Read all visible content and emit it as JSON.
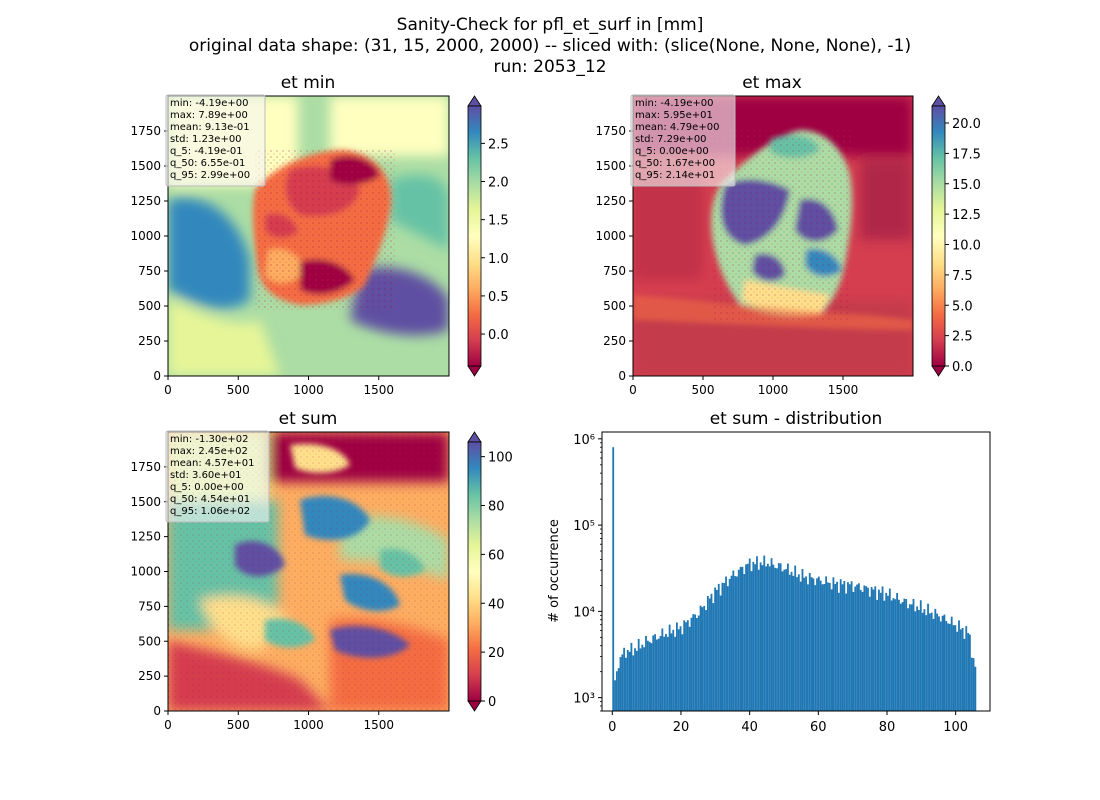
{
  "figure": {
    "title_lines": [
      "Sanity-Check for pfl_et_surf in [mm]",
      "original data shape: (31, 15, 2000, 2000) -- sliced with: (slice(None, None, None), -1)",
      "run: 2053_12"
    ]
  },
  "colors": {
    "hist_bar": "#1f77b4",
    "spectral_stops": [
      "#9e0142",
      "#d53e4f",
      "#f46d43",
      "#fdae61",
      "#fee08b",
      "#ffffbf",
      "#e6f598",
      "#abdda4",
      "#66c2a5",
      "#3288bd",
      "#5e4fa2"
    ]
  },
  "chart_data": [
    {
      "type": "heatmap",
      "title": "et min",
      "colormap": "Spectral",
      "xticks": [
        0,
        500,
        1000,
        1500
      ],
      "yticks": [
        0,
        250,
        500,
        750,
        1000,
        1250,
        1500,
        1750
      ],
      "xlim": [
        0,
        2000
      ],
      "ylim": [
        0,
        2000
      ],
      "colorbar": {
        "range": [
          -0.419,
          2.99
        ],
        "ticks": [
          0.0,
          0.5,
          1.0,
          1.5,
          2.0,
          2.5
        ],
        "tick_labels": [
          "0.0",
          "0.5",
          "1.0",
          "1.5",
          "2.0",
          "2.5"
        ]
      },
      "stats": [
        "min: -4.19e+00",
        "max: 7.89e+00",
        "mean: 9.13e-01",
        "std: 1.23e+00",
        "q_5: -4.19e-01",
        "q_50: 6.55e-01",
        "q_95: 2.99e+00"
      ]
    },
    {
      "type": "heatmap",
      "title": "et max",
      "colormap": "Spectral",
      "xticks": [
        0,
        500,
        1000,
        1500
      ],
      "yticks": [
        0,
        250,
        500,
        750,
        1000,
        1250,
        1500,
        1750
      ],
      "xlim": [
        0,
        2000
      ],
      "ylim": [
        0,
        2000
      ],
      "colorbar": {
        "range": [
          0,
          21.4
        ],
        "ticks": [
          0.0,
          2.5,
          5.0,
          7.5,
          10.0,
          12.5,
          15.0,
          17.5,
          20.0
        ],
        "tick_labels": [
          "0.0",
          "2.5",
          "5.0",
          "7.5",
          "10.0",
          "12.5",
          "15.0",
          "17.5",
          "20.0"
        ]
      },
      "stats": [
        "min: -4.19e+00",
        "max: 5.95e+01",
        "mean: 4.79e+00",
        "std: 7.29e+00",
        "q_5: 0.00e+00",
        "q_50: 1.67e+00",
        "q_95: 2.14e+01"
      ]
    },
    {
      "type": "heatmap",
      "title": "et sum",
      "colormap": "Spectral",
      "xticks": [
        0,
        500,
        1000,
        1500
      ],
      "yticks": [
        0,
        250,
        500,
        750,
        1000,
        1250,
        1500,
        1750
      ],
      "xlim": [
        0,
        2000
      ],
      "ylim": [
        0,
        2000
      ],
      "colorbar": {
        "range": [
          0,
          106
        ],
        "ticks": [
          0,
          20,
          40,
          60,
          80,
          100
        ],
        "tick_labels": [
          "0",
          "20",
          "40",
          "60",
          "80",
          "100"
        ]
      },
      "stats": [
        "min: -1.30e+02",
        "max: 2.45e+02",
        "mean: 4.57e+01",
        "std: 3.60e+01",
        "q_5: 0.00e+00",
        "q_50: 4.54e+01",
        "q_95: 1.06e+02"
      ]
    },
    {
      "type": "bar",
      "subtype": "histogram",
      "title": "et sum - distribution",
      "xlabel": "",
      "ylabel": "# of occurrence",
      "yscale": "log",
      "xlim": [
        -3,
        110
      ],
      "ylim": [
        700,
        1200000
      ],
      "xticks": [
        0,
        20,
        40,
        60,
        80,
        100
      ],
      "yticks": [
        1000,
        10000,
        100000,
        1000000
      ],
      "ytick_labels": [
        "10³",
        "10⁴",
        "10⁵",
        "10⁶"
      ],
      "bin_width": 0.53,
      "bin_start": 0,
      "spike": {
        "x": 0,
        "count": 800000
      },
      "profile_x": [
        0,
        1,
        2,
        4,
        6,
        10,
        15,
        20,
        25,
        30,
        35,
        40,
        45,
        50,
        55,
        60,
        65,
        70,
        75,
        80,
        85,
        90,
        95,
        100,
        104,
        105.5
      ],
      "profile_counts": [
        1000,
        1600,
        2800,
        3500,
        3600,
        4500,
        5500,
        6500,
        9500,
        17000,
        26000,
        36000,
        37000,
        32000,
        26000,
        23000,
        21000,
        20000,
        18000,
        16000,
        13000,
        11000,
        9000,
        7000,
        5500,
        2200
      ]
    }
  ]
}
